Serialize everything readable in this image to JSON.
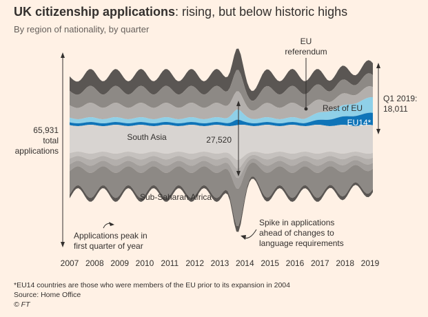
{
  "header": {
    "title_bold": "UK citizenship applications",
    "title_rest": ": rising, but below historic highs",
    "subtitle": "By region of nationality, by quarter"
  },
  "chart_data": {
    "type": "area",
    "layout": "streamgraph",
    "title": "UK citizenship applications: rising, but below historic highs",
    "subtitle": "By region of nationality, by quarter",
    "x_ticks": [
      "2007",
      "2008",
      "2009",
      "2010",
      "2011",
      "2012",
      "2013",
      "2014",
      "2015",
      "2016",
      "2017",
      "2018",
      "2019"
    ],
    "series": [
      {
        "name": "South Asia",
        "label": "South Asia",
        "color": "#d8d4d1"
      },
      {
        "name": "Sub-Saharan Africa",
        "label": "Sub-Saharan Africa",
        "color": "#8d8985"
      },
      {
        "name": "EU14",
        "label": "EU14*",
        "color": "#0f74b8"
      },
      {
        "name": "Rest of EU",
        "label": "Rest of EU",
        "color": "#8fd0e8"
      }
    ],
    "callouts": {
      "total_value": "65,931",
      "total_line1": "total",
      "total_line2": "applications",
      "value_2014": "27,520",
      "q1_2019_line1": "Q1 2019:",
      "q1_2019_line2": "18,011",
      "eu_ref_line1": "EU",
      "eu_ref_line2": "referendum"
    },
    "annotations": {
      "peak_line1": "Applications peak in",
      "peak_line2": "first quarter of year",
      "spike_line1": "Spike in applications",
      "spike_line2": "ahead of changes to",
      "spike_line3": "language requirements"
    },
    "colors": {
      "background": "#fff1e5",
      "text": "#33302e",
      "eu14": "#0f74b8",
      "rest_of_eu": "#8fd0e8",
      "south_asia": "#d8d4d1",
      "dark_band": "#5a5653",
      "mid_band": "#8d8985",
      "light_band": "#b3afac"
    }
  },
  "footer": {
    "note": "*EU14 countries are those who were members of the EU prior to its expansion in 2004",
    "source": "Source: Home Office",
    "copyright": "© FT"
  }
}
